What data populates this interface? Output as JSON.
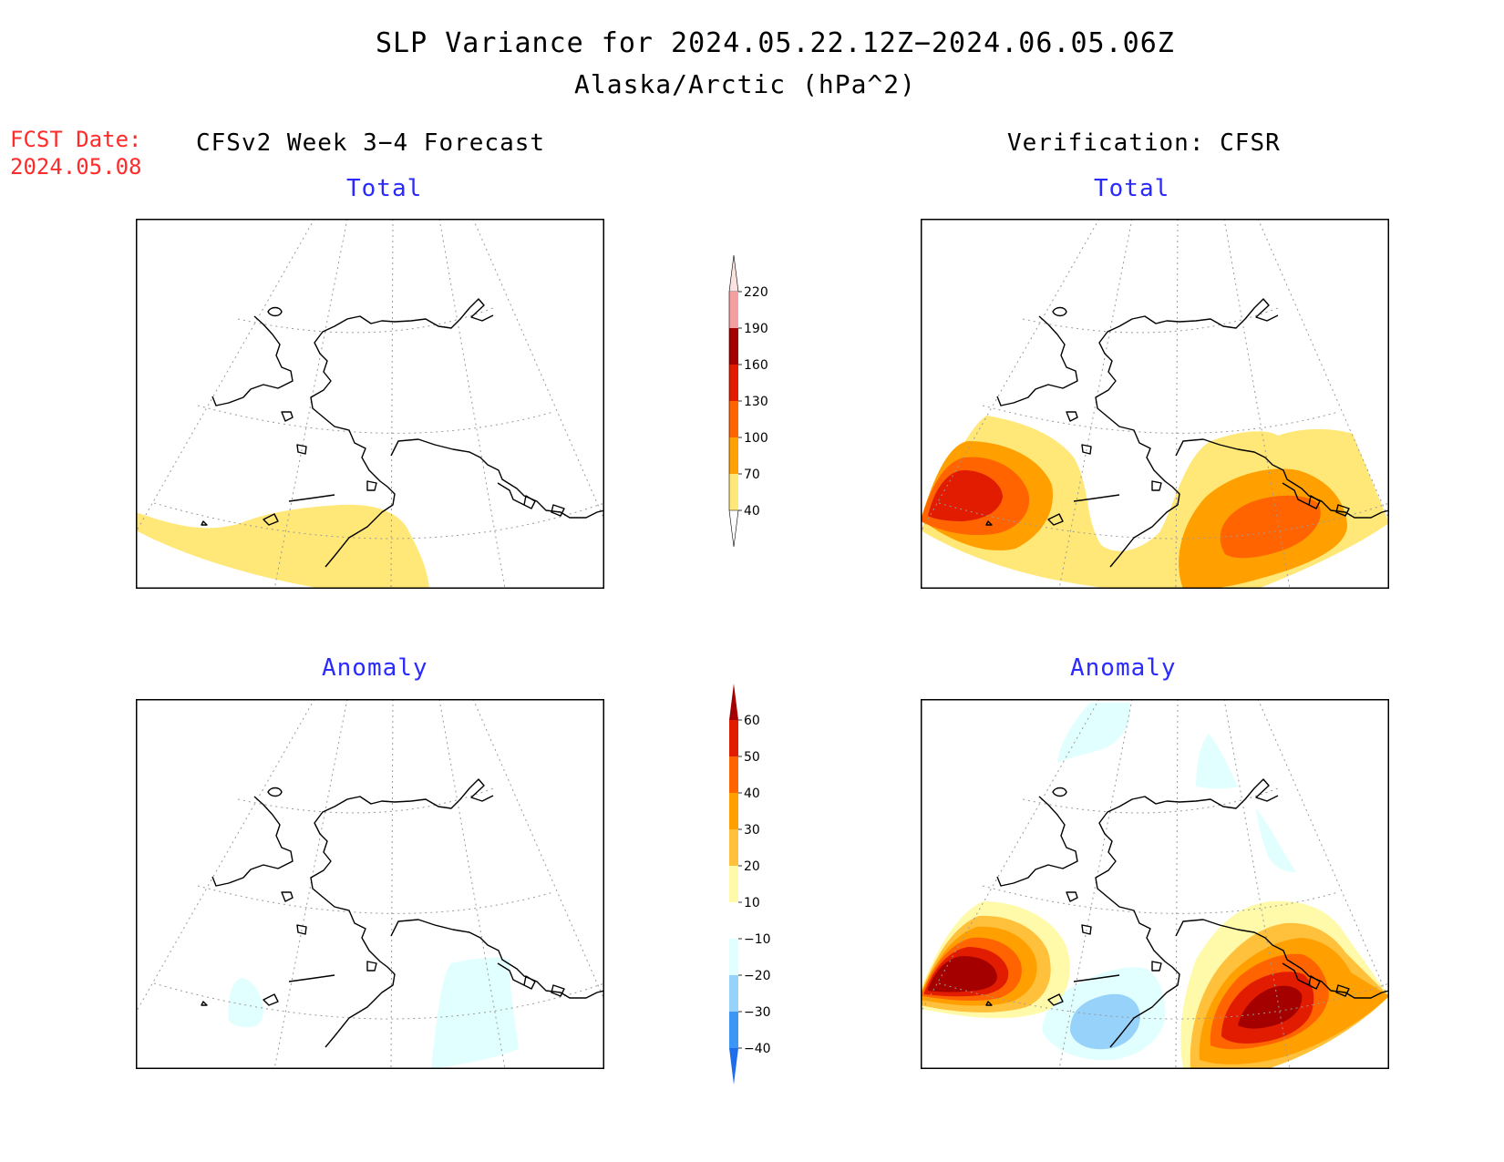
{
  "header": {
    "title": "SLP Variance for 2024.05.22.12Z−2024.06.05.06Z",
    "subtitle": "Alaska/Arctic (hPa^2)"
  },
  "fcst": {
    "line1": "FCST Date:",
    "line2": "2024.05.08"
  },
  "columns": {
    "left": "CFSv2 Week 3−4 Forecast",
    "right": "Verification: CFSR"
  },
  "panels": {
    "top_left": "Total",
    "top_right": "Total",
    "bottom_left": "Anomaly",
    "bottom_right": "Anomaly"
  },
  "colorbars": {
    "total": {
      "labels": [
        "40",
        "70",
        "100",
        "130",
        "160",
        "190",
        "220"
      ],
      "colors": [
        "#ffe878",
        "#ffa000",
        "#ff6400",
        "#e11c00",
        "#a50000",
        "#f4a0a0",
        "#fde2e2"
      ]
    },
    "anomaly": {
      "labels": [
        "−40",
        "−30",
        "−20",
        "−10",
        "10",
        "20",
        "30",
        "40",
        "50",
        "60"
      ],
      "colors": [
        "#1e6eeb",
        "#3c96f5",
        "#96d2fa",
        "#e1ffff",
        "#ffffff",
        "#fffaaa",
        "#ffc03c",
        "#ffa000",
        "#ff6400",
        "#e11c00",
        "#a50000"
      ]
    }
  }
}
